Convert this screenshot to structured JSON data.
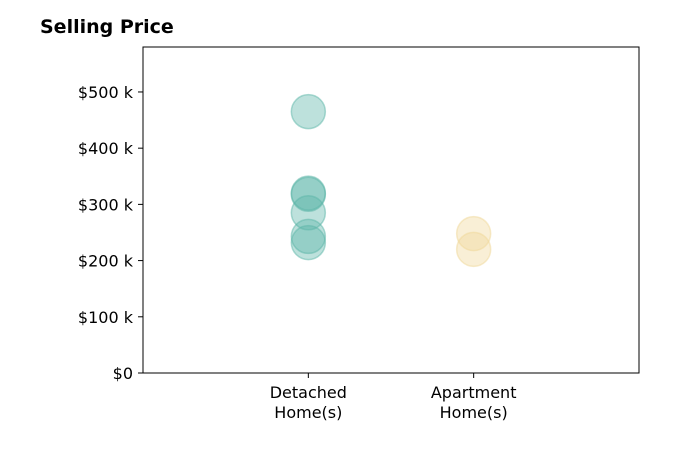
{
  "chart_data": {
    "type": "scatter",
    "title": "Selling Price",
    "xlabel": "",
    "ylabel": "",
    "categories": [
      [
        "Detached",
        "Home(s)"
      ],
      [
        "Apartment",
        "Home(s)"
      ]
    ],
    "ylim": [
      0,
      580000
    ],
    "yticks": [
      {
        "value": 0,
        "label": "$0"
      },
      {
        "value": 100000,
        "label": "$100 k"
      },
      {
        "value": 200000,
        "label": "$200 k"
      },
      {
        "value": 300000,
        "label": "$300 k"
      },
      {
        "value": 400000,
        "label": "$400 k"
      },
      {
        "value": 500000,
        "label": "$500 k"
      }
    ],
    "grid": false,
    "series": [
      {
        "category": 0,
        "color": "#5bb5a8",
        "values": [
          465000,
          320000,
          318000,
          285000,
          243000,
          232000
        ]
      },
      {
        "category": 1,
        "color": "#f0d898",
        "values": [
          248000,
          220000
        ]
      }
    ]
  }
}
